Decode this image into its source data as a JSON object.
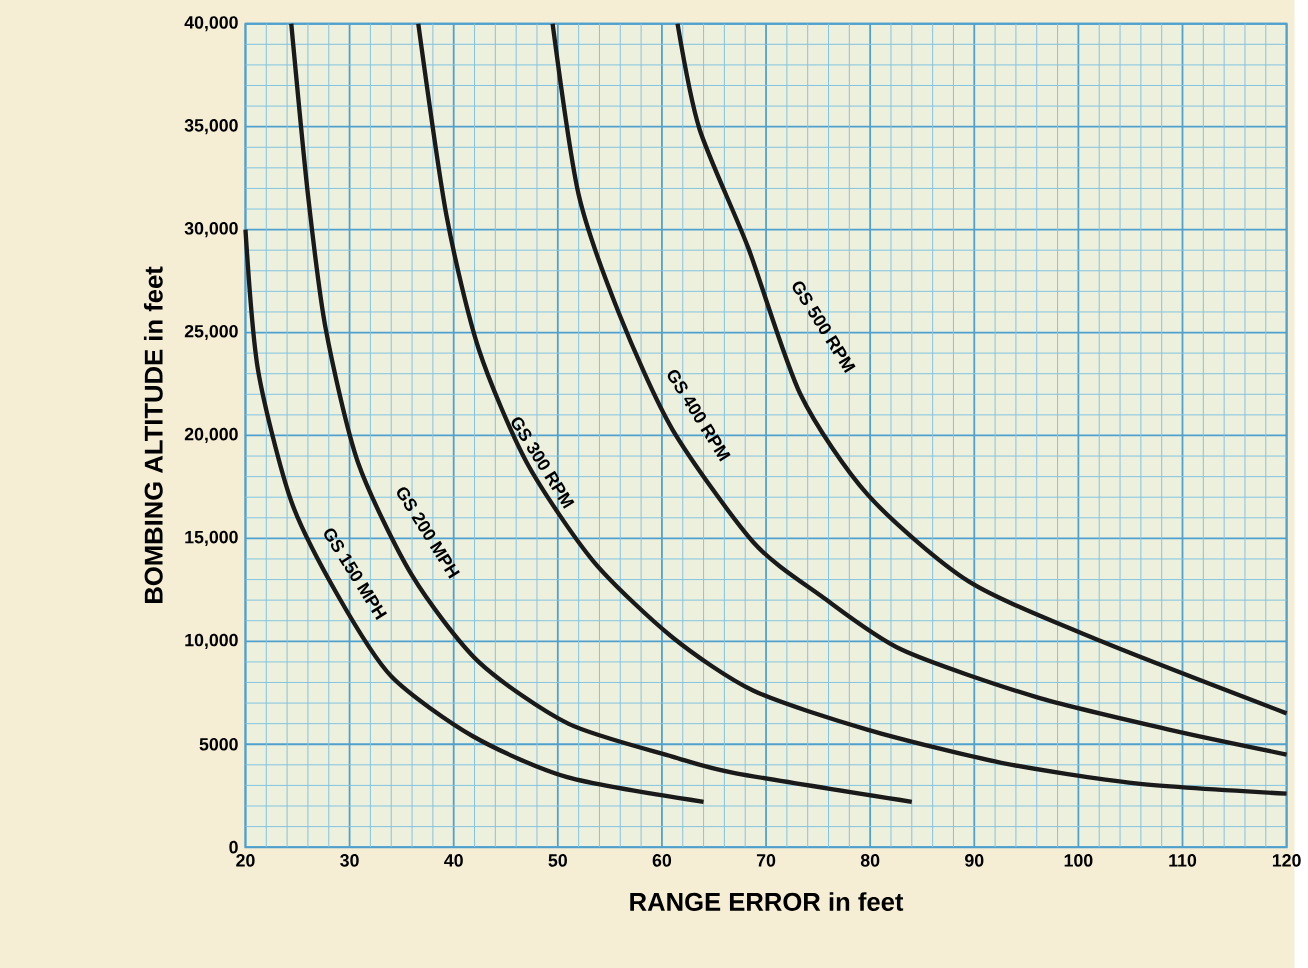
{
  "chart_data": {
    "type": "line",
    "xlabel": "RANGE ERROR in feet",
    "ylabel": "BOMBING ALTITUDE in feet",
    "xlim": [
      20,
      120
    ],
    "ylim": [
      0,
      40000
    ],
    "xticks": [
      20,
      {
        "value": 22,
        "label": null
      },
      {
        "value": 24,
        "label": null
      },
      {
        "value": 26,
        "label": null
      },
      {
        "value": 28,
        "label": null
      },
      30,
      {
        "value": 32,
        "label": null
      },
      {
        "value": 34,
        "label": null
      },
      {
        "value": 36,
        "label": null
      },
      {
        "value": 38,
        "label": null
      },
      40,
      {
        "value": 42,
        "label": null
      },
      {
        "value": 44,
        "label": null
      },
      {
        "value": 46,
        "label": null
      },
      {
        "value": 48,
        "label": null
      },
      50,
      {
        "value": 52,
        "label": null
      },
      {
        "value": 54,
        "label": null
      },
      {
        "value": 56,
        "label": null
      },
      {
        "value": 58,
        "label": null
      },
      60,
      {
        "value": 62,
        "label": null
      },
      {
        "value": 64,
        "label": null
      },
      {
        "value": 66,
        "label": null
      },
      {
        "value": 68,
        "label": null
      },
      70,
      {
        "value": 72,
        "label": null
      },
      {
        "value": 74,
        "label": null
      },
      {
        "value": 76,
        "label": null
      },
      {
        "value": 78,
        "label": null
      },
      80,
      {
        "value": 82,
        "label": null
      },
      {
        "value": 84,
        "label": null
      },
      {
        "value": 86,
        "label": null
      },
      {
        "value": 88,
        "label": null
      },
      90,
      {
        "value": 92,
        "label": null
      },
      {
        "value": 94,
        "label": null
      },
      {
        "value": 96,
        "label": null
      },
      {
        "value": 98,
        "label": null
      },
      100,
      {
        "value": 102,
        "label": null
      },
      {
        "value": 104,
        "label": null
      },
      {
        "value": 106,
        "label": null
      },
      {
        "value": 108,
        "label": null
      },
      110,
      {
        "value": 112,
        "label": null
      },
      {
        "value": 114,
        "label": null
      },
      {
        "value": 116,
        "label": null
      },
      {
        "value": 118,
        "label": null
      },
      120
    ],
    "yticks": [
      0,
      {
        "value": 1000,
        "label": null
      },
      {
        "value": 2000,
        "label": null
      },
      {
        "value": 3000,
        "label": null
      },
      {
        "value": 4000,
        "label": null
      },
      5000,
      {
        "value": 6000,
        "label": null
      },
      {
        "value": 7000,
        "label": null
      },
      {
        "value": 8000,
        "label": null
      },
      {
        "value": 9000,
        "label": null
      },
      {
        "value": 10000,
        "label": "10,000"
      },
      {
        "value": 11000,
        "label": null
      },
      {
        "value": 12000,
        "label": null
      },
      {
        "value": 13000,
        "label": null
      },
      {
        "value": 14000,
        "label": null
      },
      {
        "value": 15000,
        "label": "15,000"
      },
      {
        "value": 16000,
        "label": null
      },
      {
        "value": 17000,
        "label": null
      },
      {
        "value": 18000,
        "label": null
      },
      {
        "value": 19000,
        "label": null
      },
      {
        "value": 20000,
        "label": "20,000"
      },
      {
        "value": 21000,
        "label": null
      },
      {
        "value": 22000,
        "label": null
      },
      {
        "value": 23000,
        "label": null
      },
      {
        "value": 24000,
        "label": null
      },
      {
        "value": 25000,
        "label": "25,000"
      },
      {
        "value": 26000,
        "label": null
      },
      {
        "value": 27000,
        "label": null
      },
      {
        "value": 28000,
        "label": null
      },
      {
        "value": 29000,
        "label": null
      },
      {
        "value": 30000,
        "label": "30,000"
      },
      {
        "value": 31000,
        "label": null
      },
      {
        "value": 32000,
        "label": null
      },
      {
        "value": 33000,
        "label": null
      },
      {
        "value": 34000,
        "label": null
      },
      {
        "value": 35000,
        "label": "35,000"
      },
      {
        "value": 36000,
        "label": null
      },
      {
        "value": 37000,
        "label": null
      },
      {
        "value": 38000,
        "label": null
      },
      {
        "value": 39000,
        "label": null
      },
      {
        "value": 40000,
        "label": "40,000"
      }
    ],
    "grid": true,
    "marker": "none",
    "line_style": "solid",
    "series": [
      {
        "name": "GS 150 MPH",
        "color": "#1a1a1a",
        "x": [
          20,
          21.2,
          24.4,
          28.9,
          34,
          41.8,
          50.9,
          64
        ],
        "values": [
          30000,
          23200,
          16800,
          12200,
          8300,
          5400,
          3400,
          2200
        ]
      },
      {
        "name": "GS 200 MPH",
        "color": "#1a1a1a",
        "x": [
          24.4,
          26,
          27.7,
          30.8,
          36,
          42.4,
          51,
          61,
          67,
          84
        ],
        "values": [
          40000,
          31700,
          25200,
          18700,
          13200,
          9000,
          6000,
          4400,
          3600,
          2200
        ]
      },
      {
        "name": "GS 300 RPM",
        "color": "#1a1a1a",
        "x": [
          36.6,
          39.3,
          42.4,
          47,
          53.4,
          61,
          68.8,
          79.8,
          92.6,
          105.5,
          120
        ],
        "values": [
          40000,
          30700,
          24200,
          18700,
          13900,
          10200,
          7600,
          5700,
          4100,
          3100,
          2600
        ]
      },
      {
        "name": "GS 400 RPM",
        "color": "#1a1a1a",
        "x": [
          49.5,
          52,
          55.9,
          61,
          68.8,
          75.3,
          83,
          95.9,
          108.8,
          120
        ],
        "values": [
          40000,
          31700,
          25900,
          20300,
          14800,
          12200,
          9600,
          7300,
          5700,
          4500
        ]
      },
      {
        "name": "GS 500 RPM",
        "color": "#1a1a1a",
        "x": [
          61.5,
          63.6,
          68.3,
          73.3,
          79.8,
          89.5,
          102.2,
          120
        ],
        "values": [
          40000,
          34900,
          29100,
          22000,
          17100,
          12900,
          10000,
          6500
        ]
      }
    ]
  }
}
